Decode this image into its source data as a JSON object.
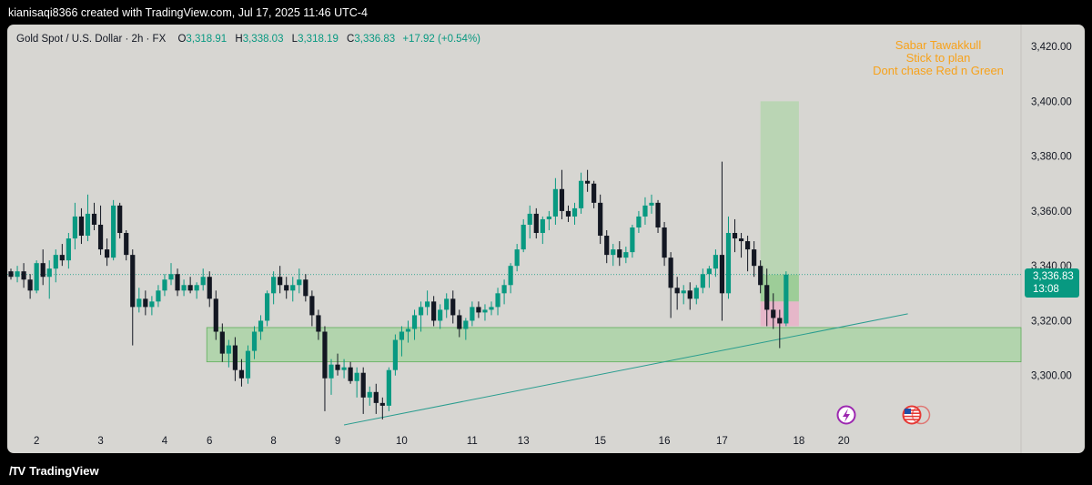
{
  "header": {
    "credit": "kianisaqi8366 created with TradingView.com, Jul 17, 2025 11:46 UTC-4"
  },
  "legend": {
    "symbol": "Gold Spot / U.S. Dollar · 2h · FX",
    "open_label": "O",
    "open": "3,318.91",
    "high_label": "H",
    "high": "3,338.03",
    "low_label": "L",
    "low": "3,318.19",
    "close_label": "C",
    "close": "3,336.83",
    "change": "+17.92 (+0.54%)"
  },
  "annotation": {
    "lines": [
      "Sabar Tawakkull",
      "Stick to plan",
      "Dont chase Red n Green"
    ]
  },
  "price_badge": {
    "price": "3,336.83",
    "countdown": "13:08"
  },
  "footer": {
    "brand": "TradingView"
  },
  "colors": {
    "up": "#089981",
    "down": "#131722",
    "note": "#f7a21b",
    "zone": "#a6d3a0",
    "stop": "#e8b4c8"
  },
  "chart_data": {
    "type": "candlestick",
    "y_ticks": [
      "3,420.00",
      "3,400.00",
      "3,380.00",
      "3,360.00",
      "3,340.00",
      "3,320.00",
      "3,300.00"
    ],
    "y_tick_values": [
      3420,
      3400,
      3380,
      3360,
      3340,
      3320,
      3300
    ],
    "ylim": [
      3280,
      3426
    ],
    "x_ticks": [
      "2",
      "3",
      "4",
      "6",
      "8",
      "9",
      "10",
      "11",
      "13",
      "15",
      "16",
      "17",
      "18",
      "20"
    ],
    "x_tick_index": [
      4,
      14,
      24,
      31,
      41,
      51,
      61,
      72,
      80,
      92,
      102,
      111,
      123,
      130
    ],
    "last_price": 3336.83,
    "zone": {
      "low": 3305,
      "high": 3317.5,
      "from_index": 31
    },
    "long_position": {
      "entry": 3336.83,
      "target": 3400,
      "stop": 3318,
      "mid": 3327,
      "from_index": 117,
      "to_index": 123
    },
    "trendline": {
      "from": {
        "index": 52,
        "price": 3282
      },
      "to": {
        "index": 140,
        "price": 3322.5
      }
    },
    "candles": [
      [
        3338,
        3339,
        3335,
        3336
      ],
      [
        3336,
        3340,
        3334,
        3338
      ],
      [
        3338,
        3341,
        3332,
        3335
      ],
      [
        3335,
        3337,
        3328,
        3331
      ],
      [
        3331,
        3342,
        3330,
        3341
      ],
      [
        3341,
        3346,
        3333,
        3336
      ],
      [
        3336,
        3342,
        3328,
        3339
      ],
      [
        3339,
        3346,
        3334,
        3344
      ],
      [
        3344,
        3348,
        3340,
        3342
      ],
      [
        3342,
        3352,
        3339,
        3350
      ],
      [
        3350,
        3363,
        3346,
        3358
      ],
      [
        3358,
        3361,
        3348,
        3351
      ],
      [
        3351,
        3366,
        3349,
        3359
      ],
      [
        3359,
        3363,
        3353,
        3355
      ],
      [
        3355,
        3362,
        3344,
        3346
      ],
      [
        3346,
        3350,
        3340,
        3343
      ],
      [
        3343,
        3364,
        3342,
        3362
      ],
      [
        3362,
        3363,
        3350,
        3352
      ],
      [
        3352,
        3353,
        3342,
        3344
      ],
      [
        3344,
        3346,
        3311,
        3325
      ],
      [
        3325,
        3332,
        3323,
        3328
      ],
      [
        3328,
        3331,
        3322,
        3325
      ],
      [
        3325,
        3329,
        3322,
        3327
      ],
      [
        3327,
        3333,
        3325,
        3331
      ],
      [
        3331,
        3337,
        3329,
        3335
      ],
      [
        3335,
        3341,
        3333,
        3337
      ],
      [
        3337,
        3339,
        3329,
        3331
      ],
      [
        3331,
        3335,
        3329,
        3333
      ],
      [
        3333,
        3336,
        3330,
        3331
      ],
      [
        3331,
        3334,
        3328,
        3333
      ],
      [
        3333,
        3339,
        3331,
        3336
      ],
      [
        3336,
        3338,
        3325,
        3328
      ],
      [
        3328,
        3331,
        3313,
        3316
      ],
      [
        3316,
        3319,
        3305,
        3308
      ],
      [
        3308,
        3313,
        3303,
        3311
      ],
      [
        3311,
        3314,
        3298,
        3302
      ],
      [
        3302,
        3306,
        3296,
        3299
      ],
      [
        3299,
        3311,
        3297,
        3309
      ],
      [
        3309,
        3318,
        3306,
        3316
      ],
      [
        3316,
        3322,
        3313,
        3320
      ],
      [
        3320,
        3331,
        3318,
        3330
      ],
      [
        3330,
        3338,
        3326,
        3336
      ],
      [
        3336,
        3340,
        3330,
        3333
      ],
      [
        3333,
        3336,
        3328,
        3331
      ],
      [
        3331,
        3336,
        3327,
        3333
      ],
      [
        3333,
        3339,
        3330,
        3335
      ],
      [
        3335,
        3337,
        3327,
        3329
      ],
      [
        3329,
        3331,
        3318,
        3322
      ],
      [
        3322,
        3324,
        3313,
        3316
      ],
      [
        3316,
        3318,
        3287,
        3299
      ],
      [
        3299,
        3306,
        3293,
        3304
      ],
      [
        3304,
        3308,
        3300,
        3302
      ],
      [
        3302,
        3306,
        3299,
        3303
      ],
      [
        3303,
        3305,
        3297,
        3298
      ],
      [
        3298,
        3303,
        3292,
        3301
      ],
      [
        3301,
        3303,
        3286,
        3292
      ],
      [
        3292,
        3296,
        3289,
        3294
      ],
      [
        3294,
        3297,
        3286,
        3290
      ],
      [
        3290,
        3292,
        3284,
        3289
      ],
      [
        3289,
        3303,
        3287,
        3302
      ],
      [
        3302,
        3315,
        3300,
        3313
      ],
      [
        3313,
        3318,
        3307,
        3316
      ],
      [
        3316,
        3320,
        3312,
        3317
      ],
      [
        3317,
        3324,
        3313,
        3322
      ],
      [
        3322,
        3327,
        3316,
        3325
      ],
      [
        3325,
        3331,
        3322,
        3327
      ],
      [
        3327,
        3329,
        3318,
        3320
      ],
      [
        3320,
        3326,
        3317,
        3324
      ],
      [
        3324,
        3330,
        3321,
        3328
      ],
      [
        3328,
        3331,
        3319,
        3322
      ],
      [
        3322,
        3324,
        3314,
        3317
      ],
      [
        3317,
        3321,
        3313,
        3320
      ],
      [
        3320,
        3327,
        3318,
        3325
      ],
      [
        3325,
        3327,
        3321,
        3323
      ],
      [
        3323,
        3326,
        3320,
        3324
      ],
      [
        3324,
        3327,
        3322,
        3325
      ],
      [
        3325,
        3332,
        3322,
        3330
      ],
      [
        3330,
        3335,
        3326,
        3333
      ],
      [
        3333,
        3341,
        3330,
        3340
      ],
      [
        3340,
        3348,
        3338,
        3346
      ],
      [
        3346,
        3357,
        3345,
        3355
      ],
      [
        3355,
        3362,
        3350,
        3359
      ],
      [
        3359,
        3361,
        3350,
        3352
      ],
      [
        3352,
        3358,
        3348,
        3357
      ],
      [
        3357,
        3360,
        3353,
        3358
      ],
      [
        3358,
        3372,
        3355,
        3368
      ],
      [
        3368,
        3375,
        3357,
        3360
      ],
      [
        3360,
        3362,
        3356,
        3358
      ],
      [
        3358,
        3363,
        3355,
        3361
      ],
      [
        3361,
        3374,
        3359,
        3371
      ],
      [
        3371,
        3375,
        3367,
        3370
      ],
      [
        3370,
        3371,
        3361,
        3363
      ],
      [
        3363,
        3366,
        3348,
        3351
      ],
      [
        3351,
        3353,
        3341,
        3344
      ],
      [
        3344,
        3348,
        3340,
        3346
      ],
      [
        3346,
        3349,
        3340,
        3343
      ],
      [
        3343,
        3347,
        3341,
        3345
      ],
      [
        3345,
        3355,
        3343,
        3354
      ],
      [
        3354,
        3360,
        3352,
        3358
      ],
      [
        3358,
        3365,
        3355,
        3362
      ],
      [
        3362,
        3366,
        3359,
        3363
      ],
      [
        3363,
        3364,
        3352,
        3354
      ],
      [
        3354,
        3356,
        3340,
        3343
      ],
      [
        3343,
        3345,
        3321,
        3332
      ],
      [
        3332,
        3336,
        3324,
        3330
      ],
      [
        3330,
        3333,
        3326,
        3331
      ],
      [
        3331,
        3334,
        3324,
        3328
      ],
      [
        3328,
        3333,
        3326,
        3332
      ],
      [
        3332,
        3339,
        3330,
        3337
      ],
      [
        3337,
        3340,
        3332,
        3339
      ],
      [
        3339,
        3346,
        3336,
        3344
      ],
      [
        3344,
        3378,
        3320,
        3330
      ],
      [
        3330,
        3358,
        3328,
        3352
      ],
      [
        3352,
        3357,
        3345,
        3350
      ],
      [
        3350,
        3352,
        3343,
        3349
      ],
      [
        3349,
        3351,
        3338,
        3346
      ],
      [
        3346,
        3349,
        3336,
        3340
      ],
      [
        3340,
        3342,
        3330,
        3333
      ],
      [
        3333,
        3339,
        3318,
        3324
      ],
      [
        3324,
        3330,
        3317,
        3321
      ],
      [
        3321,
        3324,
        3310,
        3319
      ],
      [
        3319,
        3338,
        3318,
        3336.83
      ]
    ]
  }
}
